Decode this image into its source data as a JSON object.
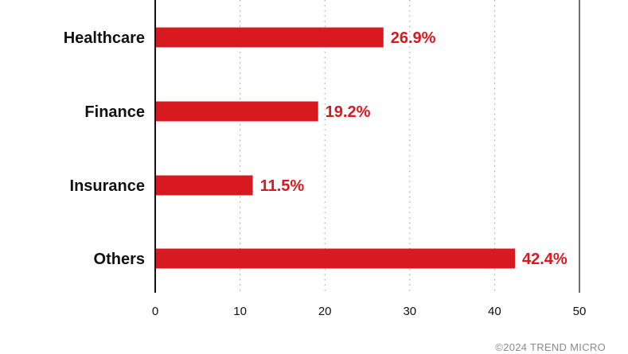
{
  "chart_data": {
    "type": "bar",
    "orientation": "horizontal",
    "categories": [
      "Healthcare",
      "Finance",
      "Insurance",
      "Others"
    ],
    "values": [
      26.9,
      19.2,
      11.5,
      42.4
    ],
    "value_labels": [
      "26.9%",
      "19.2%",
      "11.5%",
      "42.4%"
    ],
    "xlim": [
      0,
      50
    ],
    "xticks": [
      0,
      10,
      20,
      30,
      40,
      50
    ],
    "grid": "vertical dotted",
    "colors": {
      "bar": "#d71920",
      "value_label": "#d71920",
      "axis": "#111111",
      "grid": "#9a9a9a"
    }
  },
  "footer": {
    "copyright": "©2024 TREND MICRO"
  }
}
